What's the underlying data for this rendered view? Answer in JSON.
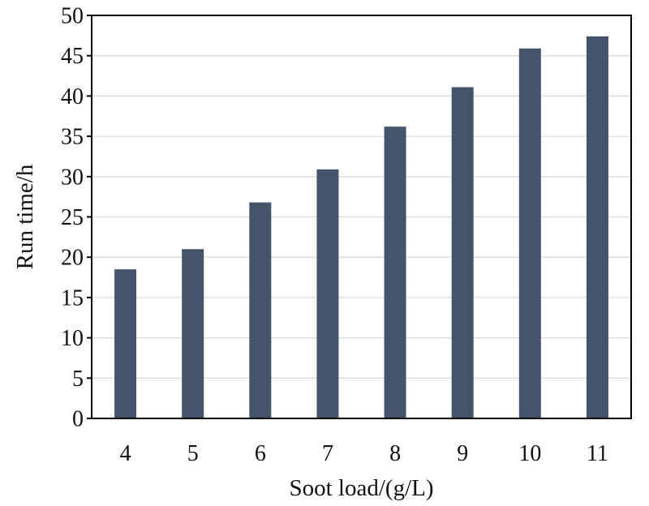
{
  "chart_data": {
    "type": "bar",
    "title": "",
    "xlabel": "Soot load/(g/L)",
    "ylabel": "Run time/h",
    "categories": [
      "4",
      "5",
      "6",
      "7",
      "8",
      "9",
      "10",
      "11"
    ],
    "values": [
      18.5,
      21.0,
      26.8,
      30.9,
      36.2,
      41.1,
      45.9,
      47.4
    ],
    "ylim": [
      0,
      50
    ],
    "yticks": [
      "0",
      "5",
      "10",
      "15",
      "20",
      "25",
      "30",
      "35",
      "40",
      "45",
      "50"
    ],
    "grid": "horizontal",
    "legend": "none",
    "bar_color": "#44546a"
  }
}
